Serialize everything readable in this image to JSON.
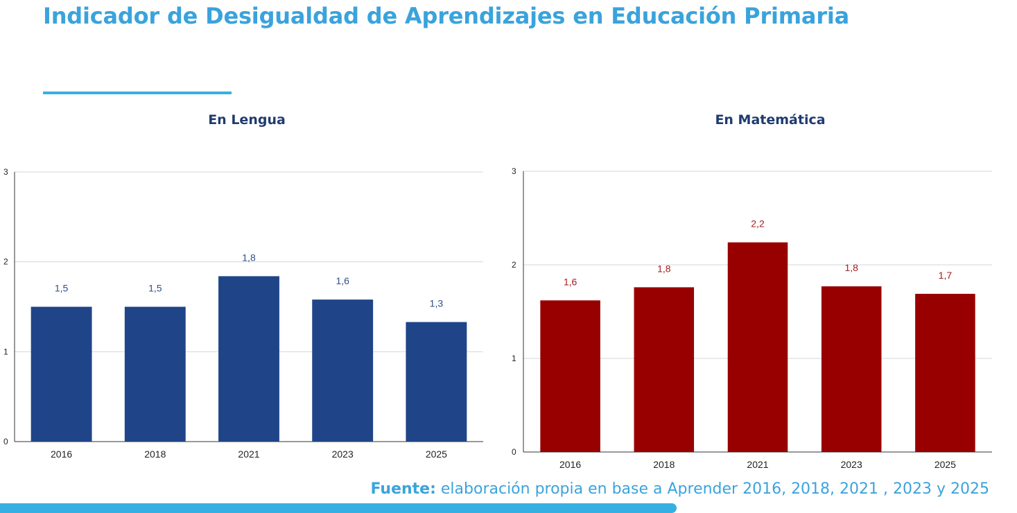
{
  "page": {
    "title": "Indicador de Desigualdad de Aprendizajes en Educación Primaria",
    "accent_color": "#3aa3dc"
  },
  "footer": {
    "source_label": "Fuente:",
    "source_text": "elaboración propia en base a Aprender 2016, 2018, 2021 , 2023 y 2025"
  },
  "chart_data": [
    {
      "type": "bar",
      "title": "En Lengua",
      "categories": [
        "2016",
        "2018",
        "2021",
        "2023",
        "2025"
      ],
      "values": [
        1.5,
        1.5,
        1.84,
        1.58,
        1.33
      ],
      "data_labels": [
        "1,5",
        "1,5",
        "1,8",
        "1,6",
        "1,3"
      ],
      "y_ticks": [
        "0",
        "1",
        "2",
        "3"
      ],
      "ylim": [
        0,
        3
      ],
      "grid": true,
      "legend": false,
      "bar_color": "#1f4588",
      "label_color": "#2e4f8a"
    },
    {
      "type": "bar",
      "title": "En Matemática",
      "categories": [
        "2016",
        "2018",
        "2021",
        "2023",
        "2025"
      ],
      "values": [
        1.62,
        1.76,
        2.24,
        1.77,
        1.69
      ],
      "data_labels": [
        "1,6",
        "1,8",
        "2,2",
        "1,8",
        "1,7"
      ],
      "y_ticks": [
        "0",
        "1",
        "2",
        "3"
      ],
      "ylim": [
        0,
        3
      ],
      "grid": true,
      "legend": false,
      "bar_color": "#980000",
      "label_color": "#a61c1c"
    }
  ]
}
